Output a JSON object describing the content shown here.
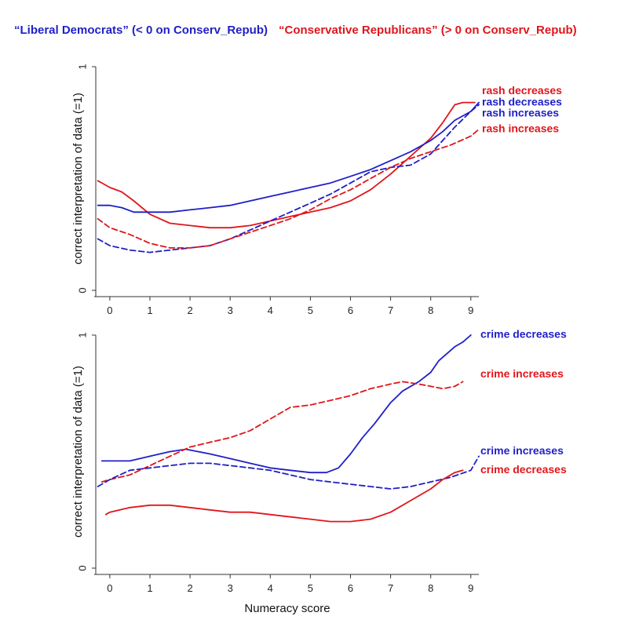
{
  "colors": {
    "blue": "#1f1fc8",
    "red": "#e0161b",
    "axis": "#333333"
  },
  "legend": [
    {
      "label": "“Liberal Democrats” (< 0 on Conserv_Repub)",
      "color": "blue"
    },
    {
      "label": "“Conservative Republicans” (> 0 on Conserv_Repub)",
      "color": "red"
    }
  ],
  "xlabel": "Numeracy score",
  "chart_data": [
    {
      "type": "line",
      "title": "",
      "ylabel": "correct interpretation of data (=1)",
      "xlabel": "",
      "xlim": [
        -0.35,
        9.2
      ],
      "ylim": [
        0,
        1
      ],
      "x_ticks": [
        0,
        1,
        2,
        3,
        4,
        5,
        6,
        7,
        8,
        9
      ],
      "y_ticks": [
        0,
        1
      ],
      "series": [
        {
          "name": "rash decreases",
          "party": "Conservative Republicans",
          "color": "red",
          "dash": false,
          "points": [
            [
              -0.3,
              0.49
            ],
            [
              0,
              0.46
            ],
            [
              0.3,
              0.44
            ],
            [
              0.6,
              0.4
            ],
            [
              1,
              0.34
            ],
            [
              1.5,
              0.3
            ],
            [
              2,
              0.29
            ],
            [
              2.5,
              0.28
            ],
            [
              3,
              0.28
            ],
            [
              3.5,
              0.29
            ],
            [
              4,
              0.31
            ],
            [
              4.5,
              0.33
            ],
            [
              5,
              0.35
            ],
            [
              5.5,
              0.37
            ],
            [
              6,
              0.4
            ],
            [
              6.5,
              0.45
            ],
            [
              7,
              0.52
            ],
            [
              7.5,
              0.6
            ],
            [
              8,
              0.68
            ],
            [
              8.3,
              0.75
            ],
            [
              8.6,
              0.83
            ],
            [
              8.8,
              0.84
            ],
            [
              9.1,
              0.84
            ]
          ]
        },
        {
          "name": "rash decreases",
          "party": "Liberal Democrats",
          "color": "blue",
          "dash": false,
          "points": [
            [
              -0.3,
              0.38
            ],
            [
              0,
              0.38
            ],
            [
              0.3,
              0.37
            ],
            [
              0.6,
              0.35
            ],
            [
              1,
              0.35
            ],
            [
              1.5,
              0.35
            ],
            [
              2,
              0.36
            ],
            [
              2.5,
              0.37
            ],
            [
              3,
              0.38
            ],
            [
              3.5,
              0.4
            ],
            [
              4,
              0.42
            ],
            [
              4.5,
              0.44
            ],
            [
              5,
              0.46
            ],
            [
              5.5,
              0.48
            ],
            [
              6,
              0.51
            ],
            [
              6.5,
              0.54
            ],
            [
              7,
              0.58
            ],
            [
              7.5,
              0.62
            ],
            [
              8,
              0.67
            ],
            [
              8.3,
              0.71
            ],
            [
              8.6,
              0.76
            ],
            [
              9,
              0.8
            ],
            [
              9.2,
              0.84
            ]
          ]
        },
        {
          "name": "rash increases",
          "party": "Liberal Democrats",
          "color": "blue",
          "dash": true,
          "points": [
            [
              -0.3,
              0.23
            ],
            [
              0,
              0.2
            ],
            [
              0.5,
              0.18
            ],
            [
              1,
              0.17
            ],
            [
              1.5,
              0.18
            ],
            [
              2,
              0.19
            ],
            [
              2.5,
              0.2
            ],
            [
              3,
              0.23
            ],
            [
              3.5,
              0.27
            ],
            [
              4,
              0.31
            ],
            [
              4.5,
              0.35
            ],
            [
              5,
              0.39
            ],
            [
              5.5,
              0.43
            ],
            [
              6,
              0.48
            ],
            [
              6.5,
              0.53
            ],
            [
              7,
              0.55
            ],
            [
              7.5,
              0.56
            ],
            [
              8,
              0.61
            ],
            [
              8.3,
              0.67
            ],
            [
              8.6,
              0.73
            ],
            [
              9,
              0.8
            ],
            [
              9.2,
              0.83
            ]
          ]
        },
        {
          "name": "rash increases",
          "party": "Conservative Republicans",
          "color": "red",
          "dash": true,
          "points": [
            [
              -0.3,
              0.32
            ],
            [
              0,
              0.28
            ],
            [
              0.5,
              0.25
            ],
            [
              1,
              0.21
            ],
            [
              1.5,
              0.19
            ],
            [
              2,
              0.19
            ],
            [
              2.5,
              0.2
            ],
            [
              3,
              0.23
            ],
            [
              3.5,
              0.26
            ],
            [
              4,
              0.29
            ],
            [
              4.5,
              0.32
            ],
            [
              5,
              0.36
            ],
            [
              5.5,
              0.41
            ],
            [
              6,
              0.45
            ],
            [
              6.5,
              0.5
            ],
            [
              7,
              0.55
            ],
            [
              7.5,
              0.59
            ],
            [
              8,
              0.62
            ],
            [
              8.5,
              0.65
            ],
            [
              9,
              0.69
            ],
            [
              9.2,
              0.72
            ]
          ]
        }
      ],
      "annotations": [
        {
          "text": "rash decreases",
          "color": "red",
          "y": 0.89
        },
        {
          "text": "rash decreases",
          "color": "blue",
          "y": 0.84
        },
        {
          "text": "rash increases",
          "color": "blue",
          "y": 0.79
        },
        {
          "text": "rash increases",
          "color": "red",
          "y": 0.72
        }
      ]
    },
    {
      "type": "line",
      "title": "",
      "ylabel": "correct interpretation of data (=1)",
      "xlabel": "Numeracy score",
      "xlim": [
        -0.35,
        9.2
      ],
      "ylim": [
        0,
        1
      ],
      "x_ticks": [
        0,
        1,
        2,
        3,
        4,
        5,
        6,
        7,
        8,
        9
      ],
      "y_ticks": [
        0,
        1
      ],
      "series": [
        {
          "name": "crime decreases",
          "party": "Liberal Democrats",
          "color": "blue",
          "dash": false,
          "points": [
            [
              -0.2,
              0.46
            ],
            [
              0,
              0.46
            ],
            [
              0.5,
              0.46
            ],
            [
              1,
              0.48
            ],
            [
              1.5,
              0.5
            ],
            [
              1.9,
              0.51
            ],
            [
              2.2,
              0.5
            ],
            [
              2.5,
              0.49
            ],
            [
              3,
              0.47
            ],
            [
              3.5,
              0.45
            ],
            [
              4,
              0.43
            ],
            [
              4.5,
              0.42
            ],
            [
              5,
              0.41
            ],
            [
              5.4,
              0.41
            ],
            [
              5.7,
              0.43
            ],
            [
              6,
              0.49
            ],
            [
              6.3,
              0.56
            ],
            [
              6.6,
              0.62
            ],
            [
              7,
              0.71
            ],
            [
              7.3,
              0.76
            ],
            [
              7.7,
              0.8
            ],
            [
              8,
              0.84
            ],
            [
              8.2,
              0.89
            ],
            [
              8.4,
              0.92
            ],
            [
              8.6,
              0.95
            ],
            [
              8.8,
              0.97
            ],
            [
              9,
              1.0
            ]
          ]
        },
        {
          "name": "crime increases",
          "party": "Conservative Republicans",
          "color": "red",
          "dash": true,
          "points": [
            [
              -0.2,
              0.37
            ],
            [
              0,
              0.38
            ],
            [
              0.5,
              0.4
            ],
            [
              1,
              0.44
            ],
            [
              1.5,
              0.48
            ],
            [
              2,
              0.52
            ],
            [
              2.5,
              0.54
            ],
            [
              3,
              0.56
            ],
            [
              3.5,
              0.59
            ],
            [
              4,
              0.64
            ],
            [
              4.5,
              0.69
            ],
            [
              5,
              0.7
            ],
            [
              5.5,
              0.72
            ],
            [
              6,
              0.74
            ],
            [
              6.5,
              0.77
            ],
            [
              7,
              0.79
            ],
            [
              7.3,
              0.8
            ],
            [
              7.7,
              0.79
            ],
            [
              8,
              0.78
            ],
            [
              8.3,
              0.77
            ],
            [
              8.6,
              0.78
            ],
            [
              8.8,
              0.8
            ]
          ]
        },
        {
          "name": "crime increases",
          "party": "Liberal Democrats",
          "color": "blue",
          "dash": true,
          "points": [
            [
              -0.3,
              0.35
            ],
            [
              0,
              0.38
            ],
            [
              0.5,
              0.42
            ],
            [
              1,
              0.43
            ],
            [
              1.5,
              0.44
            ],
            [
              2,
              0.45
            ],
            [
              2.5,
              0.45
            ],
            [
              3,
              0.44
            ],
            [
              3.5,
              0.43
            ],
            [
              4,
              0.42
            ],
            [
              4.5,
              0.4
            ],
            [
              5,
              0.38
            ],
            [
              5.5,
              0.37
            ],
            [
              6,
              0.36
            ],
            [
              6.5,
              0.35
            ],
            [
              7,
              0.34
            ],
            [
              7.5,
              0.35
            ],
            [
              8,
              0.37
            ],
            [
              8.5,
              0.39
            ],
            [
              9,
              0.42
            ],
            [
              9.2,
              0.48
            ]
          ]
        },
        {
          "name": "crime decreases",
          "party": "Conservative Republicans",
          "color": "red",
          "dash": false,
          "points": [
            [
              -0.1,
              0.23
            ],
            [
              0,
              0.24
            ],
            [
              0.5,
              0.26
            ],
            [
              1,
              0.27
            ],
            [
              1.5,
              0.27
            ],
            [
              2,
              0.26
            ],
            [
              2.5,
              0.25
            ],
            [
              3,
              0.24
            ],
            [
              3.5,
              0.24
            ],
            [
              4,
              0.23
            ],
            [
              4.5,
              0.22
            ],
            [
              5,
              0.21
            ],
            [
              5.5,
              0.2
            ],
            [
              6,
              0.2
            ],
            [
              6.5,
              0.21
            ],
            [
              7,
              0.24
            ],
            [
              7.5,
              0.29
            ],
            [
              8,
              0.34
            ],
            [
              8.3,
              0.38
            ],
            [
              8.6,
              0.41
            ],
            [
              8.8,
              0.42
            ]
          ]
        }
      ],
      "annotations": [
        {
          "text": "crime decreases",
          "color": "blue",
          "y": 1.0
        },
        {
          "text": "crime increases",
          "color": "red",
          "y": 0.83
        },
        {
          "text": "crime increases",
          "color": "blue",
          "y": 0.5
        },
        {
          "text": "crime decreases",
          "color": "red",
          "y": 0.42
        }
      ]
    }
  ]
}
